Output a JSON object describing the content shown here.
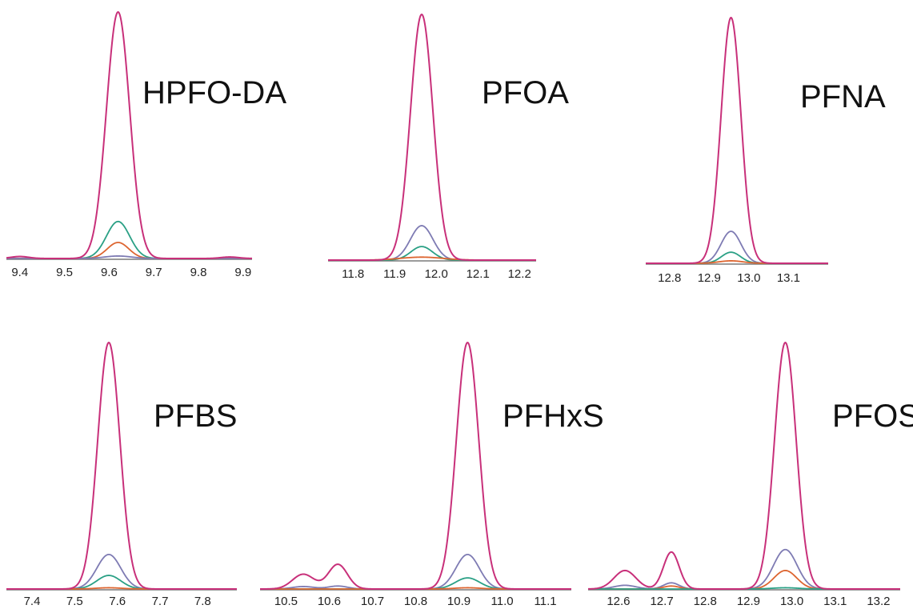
{
  "colors": {
    "axis": "#7a7a7a",
    "magenta": "#c8307a",
    "purple": "#7e7bb3",
    "teal": "#2aa085",
    "orange": "#dd6530"
  },
  "chart_data": [
    {
      "type": "line",
      "title": "HPFO-DA",
      "xlabel": "",
      "ylabel": "",
      "xlim": [
        9.37,
        9.92
      ],
      "ylim": [
        0,
        1
      ],
      "xticks": [
        "9.4",
        "9.5",
        "9.6",
        "9.7",
        "9.8",
        "9.9"
      ],
      "series": [
        {
          "color": "magenta",
          "peaks": [
            [
              9.62,
              1.0,
              0.026
            ],
            [
              9.4,
              0.008,
              0.02
            ],
            [
              9.87,
              0.006,
              0.02
            ]
          ]
        },
        {
          "color": "teal",
          "peaks": [
            [
              9.62,
              0.15,
              0.026
            ]
          ]
        },
        {
          "color": "orange",
          "peaks": [
            [
              9.62,
              0.065,
              0.024
            ]
          ]
        },
        {
          "color": "purple",
          "peaks": [
            [
              9.62,
              0.01,
              0.03
            ]
          ]
        }
      ]
    },
    {
      "type": "line",
      "title": "PFOA",
      "xlabel": "",
      "ylabel": "",
      "xlim": [
        11.74,
        12.24
      ],
      "ylim": [
        0,
        1
      ],
      "xticks": [
        "11.8",
        "11.9",
        "12.0",
        "12.1",
        "12.2"
      ],
      "series": [
        {
          "color": "magenta",
          "peaks": [
            [
              11.965,
              1.0,
              0.027
            ]
          ]
        },
        {
          "color": "purple",
          "peaks": [
            [
              11.965,
              0.14,
              0.027
            ]
          ]
        },
        {
          "color": "teal",
          "peaks": [
            [
              11.965,
              0.055,
              0.026
            ]
          ]
        },
        {
          "color": "orange",
          "peaks": [
            [
              11.965,
              0.012,
              0.05
            ]
          ]
        }
      ]
    },
    {
      "type": "line",
      "title": "PFNA",
      "xlabel": "",
      "ylabel": "",
      "xlim": [
        12.74,
        13.2
      ],
      "ylim": [
        0,
        1
      ],
      "xticks": [
        "12.8",
        "12.9",
        "13.0",
        "13.1"
      ],
      "series": [
        {
          "color": "magenta",
          "peaks": [
            [
              12.955,
              1.0,
              0.025
            ]
          ]
        },
        {
          "color": "purple",
          "peaks": [
            [
              12.955,
              0.13,
              0.025
            ]
          ]
        },
        {
          "color": "teal",
          "peaks": [
            [
              12.955,
              0.045,
              0.024
            ]
          ]
        },
        {
          "color": "orange",
          "peaks": [
            [
              12.955,
              0.01,
              0.03
            ]
          ]
        }
      ]
    },
    {
      "type": "line",
      "title": "PFBS",
      "xlabel": "",
      "ylabel": "",
      "xlim": [
        7.34,
        7.88
      ],
      "ylim": [
        0,
        1
      ],
      "xticks": [
        "7.4",
        "7.5",
        "7.6",
        "7.7",
        "7.8"
      ],
      "series": [
        {
          "color": "magenta",
          "peaks": [
            [
              7.58,
              1.0,
              0.026
            ]
          ]
        },
        {
          "color": "purple",
          "peaks": [
            [
              7.58,
              0.14,
              0.028
            ]
          ]
        },
        {
          "color": "teal",
          "peaks": [
            [
              7.58,
              0.055,
              0.028
            ]
          ]
        },
        {
          "color": "orange",
          "peaks": [
            [
              7.58,
              0.005,
              0.03
            ]
          ]
        }
      ]
    },
    {
      "type": "line",
      "title": "PFHxS",
      "xlabel": "",
      "ylabel": "",
      "xlim": [
        10.44,
        11.16
      ],
      "ylim": [
        0,
        1
      ],
      "xticks": [
        "10.5",
        "10.6",
        "10.7",
        "10.8",
        "10.9",
        "11.0",
        "11.1"
      ],
      "series": [
        {
          "color": "magenta",
          "peaks": [
            [
              10.92,
              1.0,
              0.026
            ],
            [
              10.54,
              0.06,
              0.025
            ],
            [
              10.62,
              0.1,
              0.022
            ]
          ]
        },
        {
          "color": "purple",
          "peaks": [
            [
              10.92,
              0.14,
              0.027
            ],
            [
              10.54,
              0.01,
              0.025
            ],
            [
              10.62,
              0.012,
              0.022
            ]
          ]
        },
        {
          "color": "teal",
          "peaks": [
            [
              10.92,
              0.045,
              0.028
            ]
          ]
        },
        {
          "color": "orange",
          "peaks": [
            [
              10.92,
              0.005,
              0.03
            ]
          ]
        }
      ]
    },
    {
      "type": "line",
      "title": "PFOS",
      "xlabel": "",
      "ylabel": "",
      "xlim": [
        12.53,
        13.25
      ],
      "ylim": [
        0,
        1
      ],
      "xticks": [
        "12.6",
        "12.7",
        "12.8",
        "12.9",
        "13.0",
        "13.1",
        "13.2"
      ],
      "series": [
        {
          "color": "magenta",
          "peaks": [
            [
              12.985,
              1.0,
              0.025
            ],
            [
              12.615,
              0.075,
              0.025
            ],
            [
              12.722,
              0.15,
              0.018
            ]
          ]
        },
        {
          "color": "purple",
          "peaks": [
            [
              12.985,
              0.16,
              0.027
            ],
            [
              12.615,
              0.015,
              0.025
            ],
            [
              12.722,
              0.025,
              0.018
            ]
          ]
        },
        {
          "color": "orange",
          "peaks": [
            [
              12.985,
              0.075,
              0.026
            ],
            [
              12.722,
              0.012,
              0.018
            ]
          ]
        },
        {
          "color": "teal",
          "peaks": [
            [
              12.985,
              0.005,
              0.03
            ]
          ]
        }
      ]
    }
  ]
}
